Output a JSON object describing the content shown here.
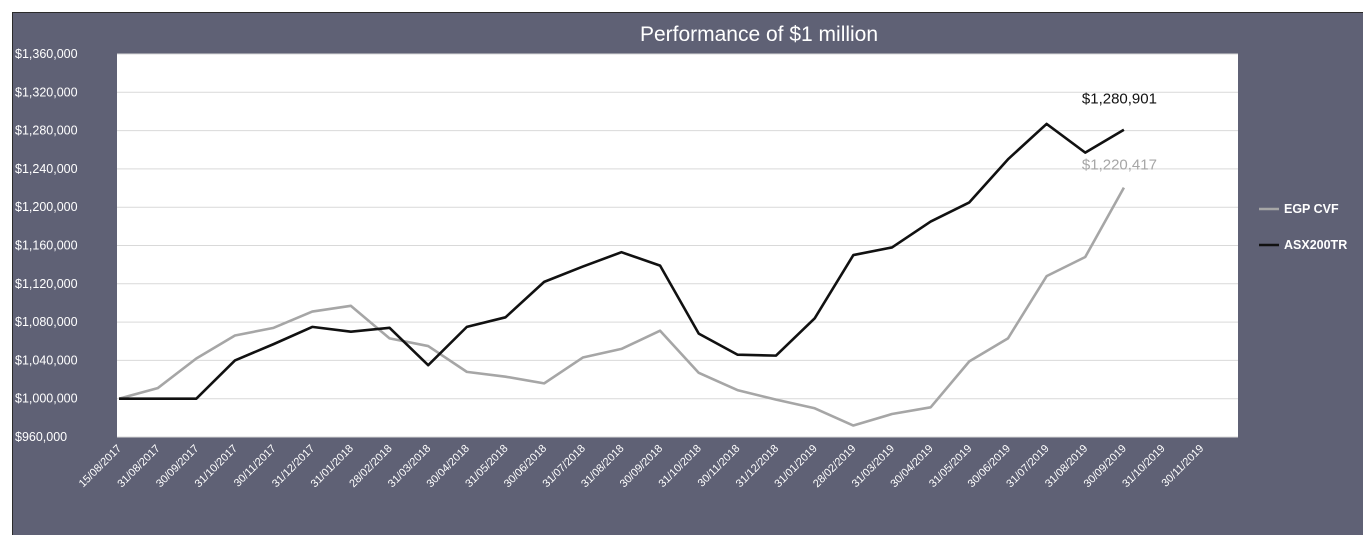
{
  "chart_data": {
    "type": "line",
    "title": "Performance of $1 million",
    "xlabel": "",
    "ylabel": "",
    "ylim": [
      960000,
      1360000
    ],
    "ytick_step": 40000,
    "y_ticks": [
      "$960,000",
      "$1,000,000",
      "$1,040,000",
      "$1,080,000",
      "$1,120,000",
      "$1,160,000",
      "$1,200,000",
      "$1,240,000",
      "$1,280,000",
      "$1,320,000",
      "$1,360,000"
    ],
    "grid": "horizontal",
    "legend": "right",
    "categories": [
      "15/08/2017",
      "31/08/2017",
      "30/09/2017",
      "31/10/2017",
      "30/11/2017",
      "31/12/2017",
      "31/01/2018",
      "28/02/2018",
      "31/03/2018",
      "30/04/2018",
      "31/05/2018",
      "30/06/2018",
      "31/07/2018",
      "31/08/2018",
      "30/09/2018",
      "31/10/2018",
      "30/11/2018",
      "31/12/2018",
      "31/01/2019",
      "28/02/2019",
      "31/03/2019",
      "30/04/2019",
      "31/05/2019",
      "30/06/2019",
      "31/07/2019",
      "31/08/2019",
      "30/09/2019",
      "31/10/2019",
      "30/11/2019"
    ],
    "series": [
      {
        "name": "EGP CVF",
        "color": "#a6a6a6",
        "values": [
          1000000,
          1011000,
          1042000,
          1066000,
          1074000,
          1091000,
          1097000,
          1063000,
          1055000,
          1028000,
          1023000,
          1016000,
          1043000,
          1052000,
          1071000,
          1027000,
          1009000,
          999000,
          990000,
          972000,
          984000,
          991000,
          1039000,
          1063000,
          1128000,
          1148000,
          1220417,
          null,
          null
        ],
        "end_label": "$1,220,417"
      },
      {
        "name": "ASX200TR",
        "color": "#111111",
        "values": [
          1000000,
          1000000,
          1000000,
          1040000,
          1057000,
          1075000,
          1070000,
          1074000,
          1035000,
          1075000,
          1085000,
          1122000,
          1138000,
          1153000,
          1139000,
          1068000,
          1046000,
          1045000,
          1084000,
          1150000,
          1158000,
          1185000,
          1205000,
          1250000,
          1287000,
          1257000,
          1280901,
          null,
          null
        ],
        "end_label": "$1,280,901"
      }
    ]
  }
}
